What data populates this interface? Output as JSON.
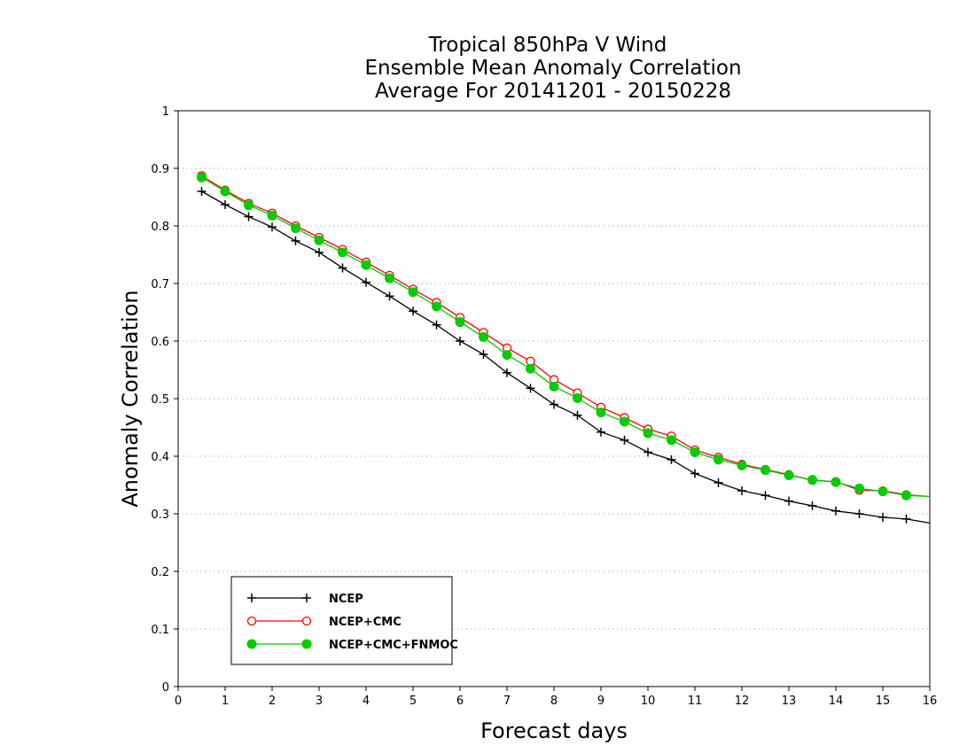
{
  "chart_data": {
    "type": "line",
    "title_lines": [
      "Tropical 850hPa V Wind",
      "Ensemble Mean Anomaly Correlation",
      "Average For 20141201 - 20150228"
    ],
    "xlabel": "Forecast days",
    "ylabel": "Anomaly Correlation",
    "xlim": [
      0,
      16
    ],
    "ylim": [
      0,
      1
    ],
    "xticks": [
      "0",
      "1",
      "2",
      "3",
      "4",
      "5",
      "6",
      "7",
      "8",
      "9",
      "10",
      "11",
      "12",
      "13",
      "14",
      "15",
      "16"
    ],
    "yticks": [
      "0",
      "0.1",
      "0.2",
      "0.3",
      "0.4",
      "0.5",
      "0.6",
      "0.7",
      "0.8",
      "0.9",
      "1"
    ],
    "grid": "dotted horizontal",
    "legend_position": "bottom-left",
    "x": [
      0.5,
      1,
      1.5,
      2,
      2.5,
      3,
      3.5,
      4,
      4.5,
      5,
      5.5,
      6,
      6.5,
      7,
      7.5,
      8,
      8.5,
      9,
      9.5,
      10,
      10.5,
      11,
      11.5,
      12,
      12.5,
      13,
      13.5,
      14,
      14.5,
      15,
      15.5,
      16
    ],
    "series": [
      {
        "name": "NCEP",
        "color": "#000000",
        "marker": "plus",
        "values": [
          0.86,
          0.837,
          0.816,
          0.798,
          0.774,
          0.754,
          0.727,
          0.702,
          0.678,
          0.652,
          0.628,
          0.6,
          0.577,
          0.545,
          0.518,
          0.49,
          0.471,
          0.442,
          0.428,
          0.407,
          0.394,
          0.37,
          0.354,
          0.34,
          0.332,
          0.322,
          0.314,
          0.305,
          0.3,
          0.294,
          0.291,
          0.284
        ]
      },
      {
        "name": "NCEP+CMC",
        "color": "#ff0000",
        "marker": "open-circle",
        "values": [
          0.887,
          0.862,
          0.839,
          0.822,
          0.8,
          0.78,
          0.759,
          0.737,
          0.714,
          0.69,
          0.667,
          0.641,
          0.615,
          0.588,
          0.565,
          0.533,
          0.51,
          0.485,
          0.467,
          0.447,
          0.435,
          0.411,
          0.398,
          0.386,
          0.377,
          0.368,
          0.358,
          0.356,
          0.341,
          0.34,
          0.333,
          0.33
        ]
      },
      {
        "name": "NCEP+CMC+FNMOC",
        "color": "#00cc00",
        "marker": "filled-circle",
        "values": [
          0.884,
          0.86,
          0.836,
          0.818,
          0.796,
          0.775,
          0.754,
          0.732,
          0.709,
          0.685,
          0.66,
          0.633,
          0.607,
          0.576,
          0.552,
          0.521,
          0.501,
          0.476,
          0.46,
          0.44,
          0.428,
          0.407,
          0.394,
          0.384,
          0.376,
          0.367,
          0.359,
          0.355,
          0.344,
          0.339,
          0.332,
          0.33
        ]
      }
    ]
  }
}
